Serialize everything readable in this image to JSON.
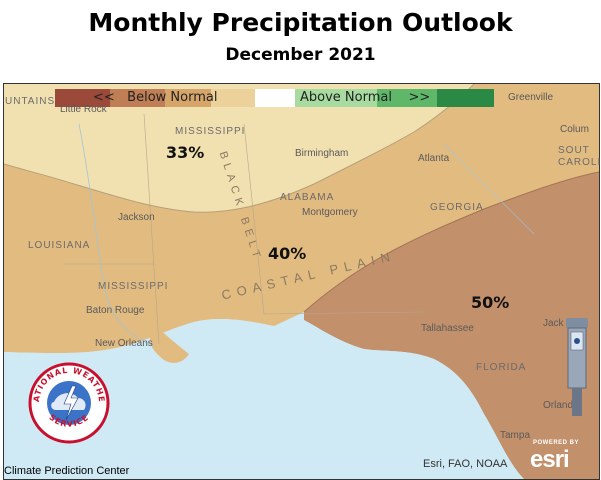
{
  "title": "Monthly Precipitation Outlook",
  "subtitle": "December 2021",
  "legend": {
    "below_label": "<<   Below Normal",
    "above_label": "Above Normal    >>",
    "colors": [
      "#9b4a3a",
      "#c07e56",
      "#d6a56a",
      "#edd19a",
      "#ffffff",
      "#a8dba0",
      "#5fb86a",
      "#2a8a45"
    ]
  },
  "probabilities": {
    "north": "33%",
    "central": "40%",
    "southeast": "50%"
  },
  "zone_colors": {
    "north": "#f1e0b0",
    "central": "#e2bb80",
    "southeast": "#c2906b",
    "water": "#cfeaf5"
  },
  "map_labels": {
    "mountains": "UNTAINS",
    "little_rock": "Little Rock",
    "mississippi_top": "MISSISSIPPI",
    "birmingham": "Birmingham",
    "atlanta": "Atlanta",
    "greenville": "Greenville",
    "columbia": "Colum",
    "south_carolina_1": "SOUT",
    "south_carolina_2": "CAROLI",
    "alabama": "ALABAMA",
    "montgomery": "Montgomery",
    "georgia": "GEORGIA",
    "jackson": "Jackson",
    "louisiana": "LOUISIANA",
    "mississippi": "MISSISSIPPI",
    "baton_rouge": "Baton Rouge",
    "new_orleans": "New Orleans",
    "tallahassee": "Tallahassee",
    "jacksonville": "Jack",
    "florida": "FLORIDA",
    "orlando": "Orlando",
    "tampa": "Tampa",
    "coastal_plain": "COASTAL PLAIN",
    "black_belt": "BLACK BELT"
  },
  "credits": {
    "left": "Climate Prediction Center",
    "right": "Esri, FAO, NOAA",
    "powered_by": "POWERED BY",
    "esri": "esri"
  },
  "nws_logo": {
    "top_text": "NATIONAL WEATHER",
    "bottom_text": "SERVICE"
  }
}
